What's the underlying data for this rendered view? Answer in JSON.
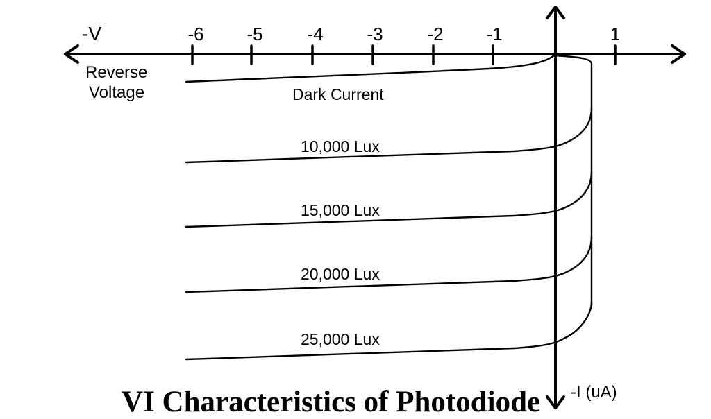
{
  "title": "VI Characteristics of Photodiode",
  "colors": {
    "background": "#ffffff",
    "ink": "#000000"
  },
  "axes": {
    "x_negative_label": "-V",
    "x_label_line1": "Reverse",
    "x_label_line2": "Voltage",
    "y_label": "-I (uA)",
    "ticks": [
      "-6",
      "-5",
      "-4",
      "-3",
      "-2",
      "-1",
      "1"
    ]
  },
  "curves": [
    {
      "label": "Dark Current"
    },
    {
      "label": "10,000 Lux"
    },
    {
      "label": "15,000 Lux"
    },
    {
      "label": "20,000 Lux"
    },
    {
      "label": "25,000 Lux"
    }
  ]
}
